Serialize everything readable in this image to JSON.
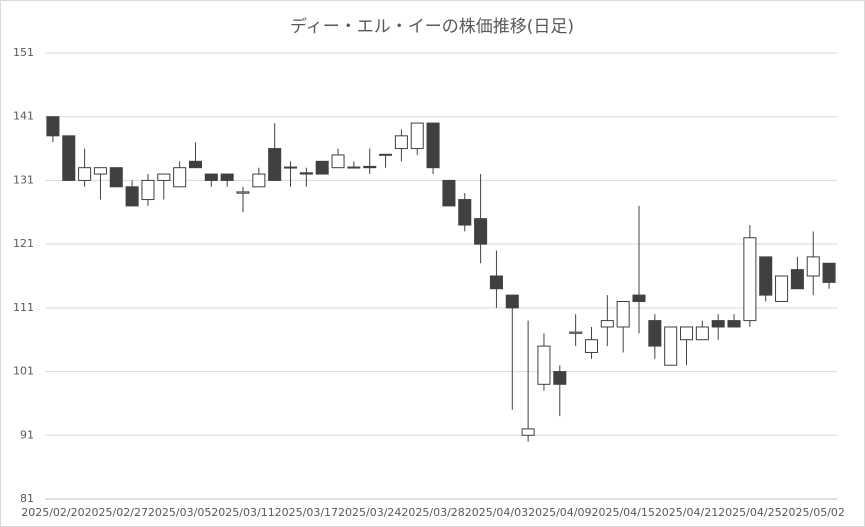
{
  "chart_data": {
    "type": "candlestick",
    "title": "ディー・エル・イーの株価推移(日足)",
    "categories": [
      "2025/02/20",
      null,
      null,
      null,
      "2025/02/27",
      null,
      null,
      null,
      "2025/03/05",
      null,
      null,
      null,
      "2025/03/11",
      null,
      null,
      null,
      "2025/03/17",
      null,
      null,
      null,
      "2025/03/24",
      null,
      null,
      null,
      "2025/03/28",
      null,
      null,
      null,
      "2025/04/03",
      null,
      null,
      null,
      "2025/04/09",
      null,
      null,
      null,
      "2025/04/15",
      null,
      null,
      null,
      "2025/04/21",
      null,
      null,
      null,
      "2025/04/25",
      null,
      null,
      null,
      "2025/05/02",
      null
    ],
    "open": [
      141,
      138,
      131,
      132,
      133,
      130,
      128,
      131,
      130,
      134,
      132,
      132,
      129,
      130,
      136,
      133.1,
      132.2,
      134,
      133,
      133.1,
      133.2,
      135,
      136,
      136,
      140,
      131,
      128,
      125,
      116,
      113,
      91,
      99,
      101,
      107,
      104,
      108,
      108,
      113,
      109,
      102,
      106,
      106,
      109,
      109,
      109,
      119,
      112,
      117,
      116,
      118
    ],
    "high": [
      141,
      138,
      136,
      133,
      133,
      131,
      132,
      132,
      134,
      137,
      132,
      132,
      130,
      133,
      140,
      134,
      133,
      134,
      136,
      134,
      136,
      135,
      139,
      140,
      140,
      131,
      129,
      132,
      120,
      113,
      109,
      107,
      102,
      110,
      108,
      113,
      112,
      127,
      110,
      108,
      108,
      109,
      110,
      110,
      124,
      119,
      116,
      119,
      123,
      118
    ],
    "low": [
      137,
      131,
      130,
      128,
      130,
      127,
      127,
      128,
      130,
      133,
      130,
      130,
      126,
      130,
      131,
      130,
      130,
      132,
      133,
      133,
      132,
      133,
      134,
      135,
      132,
      127,
      123,
      118,
      111,
      95,
      90,
      98,
      94,
      105,
      103,
      105,
      104,
      107,
      103,
      102,
      102,
      106,
      106,
      108,
      108,
      112,
      112,
      114,
      113,
      114
    ],
    "close": [
      138,
      131,
      133,
      133,
      130,
      127,
      131,
      132,
      133,
      133,
      131,
      131,
      129.2,
      132,
      131,
      133,
      132,
      132,
      135,
      133,
      133,
      135.1,
      138,
      140,
      133,
      127,
      124,
      121,
      114,
      111,
      92,
      105,
      99,
      107.2,
      106,
      109,
      112,
      112,
      105,
      108,
      108,
      108,
      108,
      108,
      122,
      113,
      116,
      114,
      119,
      115
    ],
    "up_color": "#ffffff",
    "down_color": "#404040",
    "edge_color": "#404040",
    "ylim": [
      81,
      151
    ],
    "yticks": [
      81,
      91,
      101,
      111,
      121,
      131,
      141,
      151
    ],
    "grid": true
  }
}
